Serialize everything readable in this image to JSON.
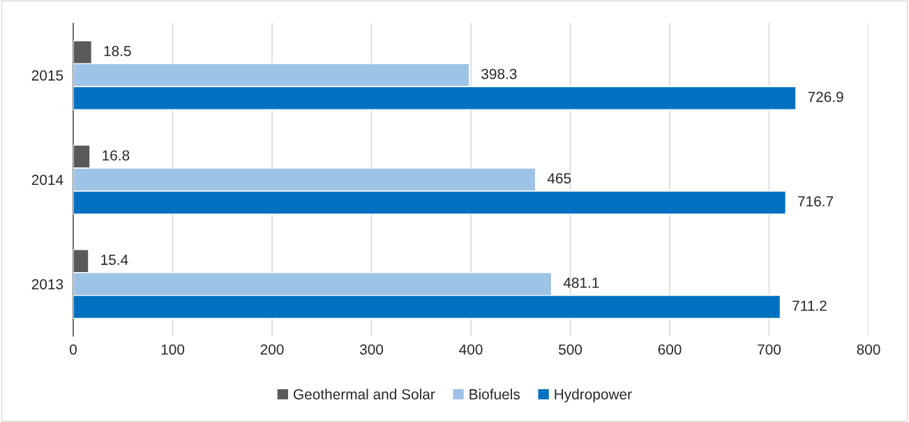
{
  "chart_data": {
    "type": "bar",
    "orientation": "horizontal",
    "categories": [
      "2015",
      "2014",
      "2013"
    ],
    "series": [
      {
        "name": "Geothermal and Solar",
        "color": "#595959",
        "values": [
          18.5,
          16.8,
          15.4
        ]
      },
      {
        "name": "Biofuels",
        "color": "#9dc3e6",
        "values": [
          398.3,
          465,
          481.1
        ]
      },
      {
        "name": "Hydropower",
        "color": "#0070c0",
        "values": [
          726.9,
          716.7,
          711.2
        ]
      }
    ],
    "xlim": [
      0,
      800
    ],
    "xticks": [
      0,
      100,
      200,
      300,
      400,
      500,
      600,
      700,
      800
    ],
    "grid": "x",
    "legend": "bottom",
    "data_labels": true
  }
}
